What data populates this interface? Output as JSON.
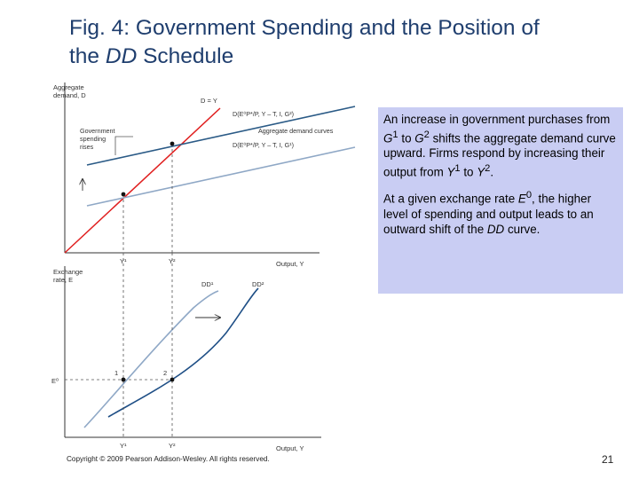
{
  "slide": {
    "title_line1": "Fig. 4: Government Spending and the Position of",
    "title_line2_prefix": "the ",
    "title_line2_italic": "DD",
    "title_line2_suffix": " Schedule",
    "copyright": "Copyright © 2009 Pearson Addison-Wesley. All rights reserved.",
    "page_number": "21"
  },
  "explanation": {
    "paragraph1_html": "An increase in government purchases from <i>G</i><sup>1</sup> to <i>G</i><sup>2</sup> shifts the aggregate demand curve upward. Firms respond by increasing their output from <i>Y</i><sup>1</sup> to <i>Y</i><sup>2</sup>.",
    "paragraph2_html": "At a given exchange rate <i>E</i><sup>0</sup>, the higher level of spending and output leads to an outward shift of the <i>DD</i> curve."
  },
  "top_panel": {
    "y_axis_label_line1": "Aggregate",
    "y_axis_label_line2": "demand, D",
    "x_axis_label": "Output, Y",
    "line_45_label": "D = Y",
    "curve_g2_label": "D(E⁰P*/P, Y – T, I, G²)",
    "curve_g1_label": "D(E⁰P*/P, Y – T, I, G¹)",
    "curves_caption": "Aggregate demand curves",
    "annotation_line1": "Government",
    "annotation_line2": "spending",
    "annotation_line3": "rises",
    "tick_y1": "Y¹",
    "tick_y2": "Y²"
  },
  "bottom_panel": {
    "y_axis_label_line1": "Exchange",
    "y_axis_label_line2": "rate, E",
    "x_axis_label": "Output, Y",
    "curve_dd1_label": "DD¹",
    "curve_dd2_label": "DD²",
    "e0_label": "E⁰",
    "point1_label": "1",
    "point2_label": "2",
    "tick_y1": "Y¹",
    "tick_y2": "Y²"
  },
  "colors": {
    "title": "#1f3e6e",
    "textbox_bg": "#c9cdf3",
    "line_45": "#e02020",
    "ad_g2": "#2a5a86",
    "ad_g1": "#8fa8c6",
    "dd1": "#8fa8c6",
    "dd2": "#1f4f86"
  }
}
